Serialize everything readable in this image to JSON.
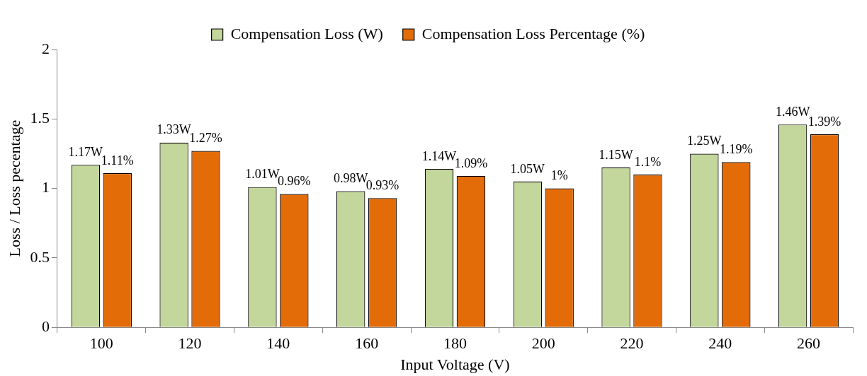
{
  "chart_data": {
    "type": "bar",
    "xlabel": "Input Voltage (V)",
    "ylabel": "Loss / Loss pecentage",
    "categories": [
      "100",
      "120",
      "140",
      "160",
      "180",
      "200",
      "220",
      "240",
      "260"
    ],
    "series": [
      {
        "name": "Compensation Loss (W)",
        "color": "#c3d69b",
        "values": [
          1.17,
          1.33,
          1.01,
          0.98,
          1.14,
          1.05,
          1.15,
          1.25,
          1.46
        ],
        "value_labels": [
          "1.17W",
          "1.33W",
          "1.01W",
          "0.98W",
          "1.14W",
          "1.05W",
          "1.15W",
          "1.25W",
          "1.46W"
        ]
      },
      {
        "name": "Compensation Loss Percentage (%)",
        "color": "#e36c09",
        "values": [
          1.11,
          1.27,
          0.96,
          0.93,
          1.09,
          1,
          1.1,
          1.19,
          1.39
        ],
        "value_labels": [
          "1.11%",
          "1.27%",
          "0.96%",
          "0.93%",
          "1.09%",
          "1%",
          "1.1%",
          "1.19%",
          "1.39%"
        ]
      }
    ],
    "ylim": [
      0,
      2
    ],
    "yticks": [
      0,
      0.5,
      1,
      1.5,
      2
    ],
    "grid": false,
    "legend": "top"
  }
}
